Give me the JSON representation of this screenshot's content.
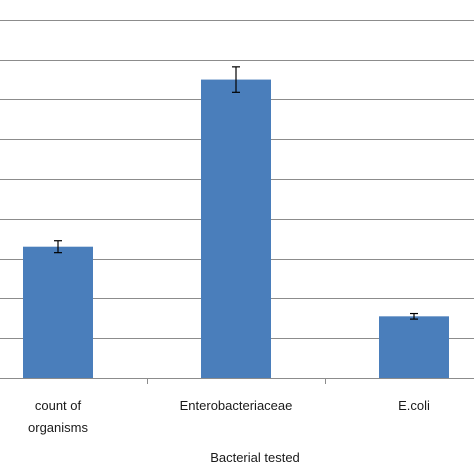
{
  "chart_data": {
    "type": "bar",
    "categories": [
      "count of\norganisms",
      "Enterobacteriaceae",
      "E.coli",
      ""
    ],
    "series": [
      {
        "values": [
          3.3,
          7.5,
          1.55,
          null
        ],
        "errors": [
          0.15,
          0.32,
          0.07,
          null
        ],
        "color": "#4a7ebb"
      }
    ],
    "xlabel": "Bacterial tested",
    "ylabel": "",
    "title": "",
    "ylim": [
      0,
      9.5
    ],
    "grid_lines": [
      1,
      2,
      3,
      4,
      5,
      6,
      7,
      8,
      9
    ],
    "grid": true,
    "legend": "none"
  }
}
